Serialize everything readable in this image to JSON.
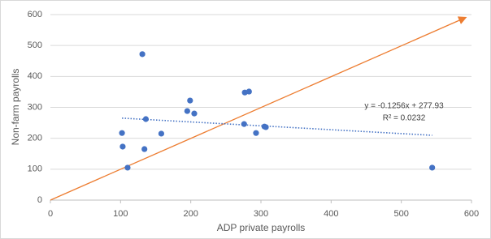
{
  "chart_data": {
    "type": "scatter",
    "x_label": "ADP private payrolls",
    "y_label": "Non-farm payrolls",
    "x": [
      131,
      102,
      103,
      110,
      136,
      134,
      158,
      195,
      199,
      205,
      277,
      283,
      276,
      293,
      305,
      307,
      544
    ],
    "values": [
      472,
      217,
      173,
      105,
      262,
      165,
      215,
      288,
      322,
      280,
      348,
      351,
      246,
      217,
      238,
      236,
      105
    ],
    "color": "#4472c4",
    "xlim": [
      0,
      600
    ],
    "xticks": [
      0,
      100,
      200,
      300,
      400,
      500,
      600
    ],
    "ylim": [
      0,
      600
    ],
    "yticks": [
      0,
      100,
      200,
      300,
      400,
      500,
      600
    ],
    "grid": true,
    "trendline": {
      "slope": -0.1256,
      "intercept": 277.93,
      "equation": "y = -0.1256x + 277.93",
      "r_squared": "R² = 0.0232",
      "color": "#4472c4"
    },
    "reference_color": "#ed7d31"
  }
}
